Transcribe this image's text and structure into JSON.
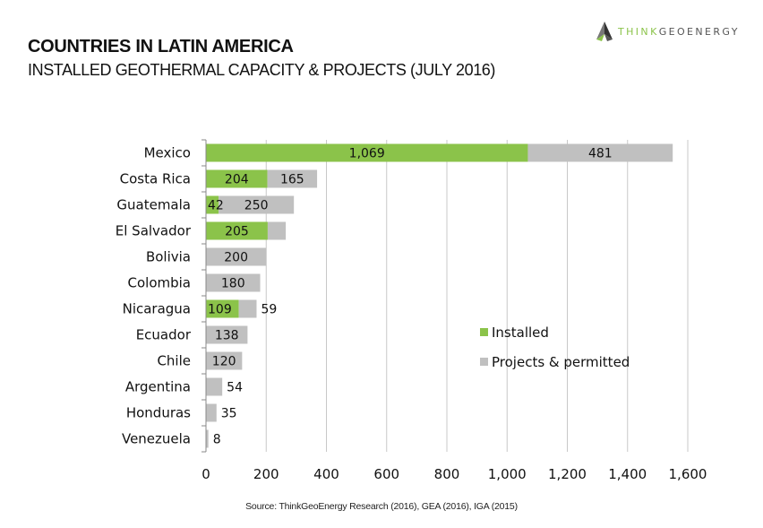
{
  "header": {
    "title": "COUNTRIES IN LATIN AMERICA",
    "subtitle": "INSTALLED GEOTHERMAL CAPACITY & PROJECTS (JULY 2016)"
  },
  "logo": {
    "think": "THINK",
    "geo": "GEOENERGY",
    "icon": "geoenergy-logo-icon"
  },
  "source": "Source: ThinkGeoEnergy Research (2016), GEA (2016), IGA (2015)",
  "colors": {
    "installed": "#8bc34a",
    "projects": "#c0c0c0",
    "gridline": "#c8c8c8",
    "axis": "#888888"
  },
  "chart_data": {
    "type": "bar",
    "orientation": "horizontal",
    "stacked": true,
    "title": "COUNTRIES IN LATIN AMERICA",
    "subtitle": "INSTALLED GEOTHERMAL CAPACITY & PROJECTS (JULY 2016)",
    "xlabel": "",
    "ylabel": "",
    "xlim": [
      0,
      1600
    ],
    "xticks": [
      0,
      200,
      400,
      600,
      800,
      1000,
      1200,
      1400,
      1600
    ],
    "xtick_labels": [
      "0",
      "200",
      "400",
      "600",
      "800",
      "1,000",
      "1,200",
      "1,400",
      "1,600"
    ],
    "grid": "vertical",
    "legend": "center-right",
    "categories": [
      "Mexico",
      "Costa Rica",
      "Guatemala",
      "El Salvador",
      "Bolivia",
      "Colombia",
      "Nicaragua",
      "Ecuador",
      "Chile",
      "Argentina",
      "Honduras",
      "Venezuela"
    ],
    "series": [
      {
        "name": "Installed",
        "color": "#8bc34a",
        "values": [
          1069,
          204,
          42,
          205,
          0,
          0,
          109,
          0,
          0,
          0,
          0,
          0
        ],
        "labels": [
          "1,069",
          "204",
          "42",
          "205",
          "",
          "",
          "109",
          "",
          "",
          "",
          "",
          ""
        ]
      },
      {
        "name": "Projects & permitted",
        "color": "#c0c0c0",
        "values": [
          481,
          165,
          250,
          60,
          200,
          180,
          59,
          138,
          120,
          54,
          35,
          8
        ],
        "labels": [
          "481",
          "165",
          "250",
          "",
          "200",
          "180",
          "59",
          "138",
          "120",
          "54",
          "35",
          "8"
        ]
      }
    ]
  }
}
